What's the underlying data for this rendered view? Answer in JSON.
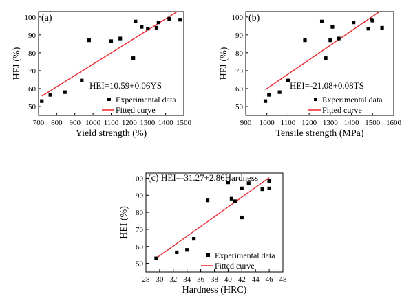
{
  "chart_data": [
    {
      "type": "scatter",
      "panel_label": "(a)",
      "equation": "HEI=10.59+0.06YS",
      "xlabel": "Yield strength (%)",
      "ylabel": "HEI (%)",
      "xlim": [
        700,
        1500
      ],
      "ylim": [
        45,
        103
      ],
      "xticks": [
        700,
        800,
        900,
        1000,
        1100,
        1200,
        1300,
        1400,
        1500
      ],
      "yticks": [
        50,
        60,
        70,
        80,
        90,
        100
      ],
      "legend_position": "bottom-right",
      "colors": {
        "points": "#000000",
        "fit": "#e8262a"
      },
      "series": [
        {
          "name": "Experimental data",
          "points": [
            [
              718,
              53
            ],
            [
              765,
              56.5
            ],
            [
              845,
              58
            ],
            [
              938,
              64.5
            ],
            [
              978,
              87
            ],
            [
              1100,
              86.5
            ],
            [
              1150,
              88
            ],
            [
              1222,
              77
            ],
            [
              1234,
              97.5
            ],
            [
              1268,
              94.5
            ],
            [
              1302,
              93.5
            ],
            [
              1350,
              94
            ],
            [
              1361,
              97
            ],
            [
              1420,
              99
            ],
            [
              1480,
              98.5
            ]
          ]
        },
        {
          "name": "Fitted curve",
          "line": [
            [
              718,
              55.8
            ],
            [
              1480,
              104
            ]
          ]
        }
      ]
    },
    {
      "type": "scatter",
      "panel_label": "(b)",
      "equation": "HEI=-21.08+0.08TS",
      "xlabel": "Tensile strength (MPa)",
      "ylabel": "HEI (%)",
      "xlim": [
        900,
        1600
      ],
      "ylim": [
        45,
        103
      ],
      "xticks": [
        900,
        1000,
        1100,
        1200,
        1300,
        1400,
        1500,
        1600
      ],
      "yticks": [
        50,
        60,
        70,
        80,
        90,
        100
      ],
      "legend_position": "bottom-right",
      "colors": {
        "points": "#000000",
        "fit": "#e8262a"
      },
      "series": [
        {
          "name": "Experimental data",
          "points": [
            [
              993,
              53
            ],
            [
              1010,
              56.5
            ],
            [
              1060,
              58
            ],
            [
              1100,
              64.5
            ],
            [
              1180,
              87
            ],
            [
              1260,
              97.5
            ],
            [
              1278,
              77
            ],
            [
              1300,
              87
            ],
            [
              1310,
              94.5
            ],
            [
              1340,
              88
            ],
            [
              1410,
              97
            ],
            [
              1480,
              93.5
            ],
            [
              1495,
              98.5
            ],
            [
              1500,
              98
            ],
            [
              1545,
              94
            ]
          ]
        },
        {
          "name": "Fitted curve",
          "line": [
            [
              993,
              59.4
            ],
            [
              1545,
              104
            ]
          ]
        }
      ]
    },
    {
      "type": "scatter",
      "panel_label": "(c)",
      "equation": "HEI=-31.27+2.86Hardness",
      "xlabel": "Hardness (HRC)",
      "ylabel": "HEI (%)",
      "xlim": [
        28,
        48
      ],
      "ylim": [
        45,
        103
      ],
      "xticks": [
        28,
        30,
        32,
        34,
        36,
        38,
        40,
        42,
        44,
        46,
        48
      ],
      "yticks": [
        50,
        60,
        70,
        80,
        90,
        100
      ],
      "legend_position": "bottom-right",
      "colors": {
        "points": "#000000",
        "fit": "#e8262a"
      },
      "series": [
        {
          "name": "Experimental data",
          "points": [
            [
              29.5,
              53
            ],
            [
              32.5,
              56.5
            ],
            [
              34,
              58
            ],
            [
              35,
              64.5
            ],
            [
              37,
              87
            ],
            [
              40,
              97.5
            ],
            [
              40.5,
              88
            ],
            [
              41,
              86.5
            ],
            [
              42,
              77
            ],
            [
              42,
              94
            ],
            [
              43,
              97
            ],
            [
              45,
              93.5
            ],
            [
              46,
              98.5
            ],
            [
              46,
              98
            ],
            [
              46,
              94
            ]
          ]
        },
        {
          "name": "Fitted curve",
          "line": [
            [
              29.5,
              53.1
            ],
            [
              46,
              100.3
            ]
          ]
        }
      ]
    }
  ]
}
